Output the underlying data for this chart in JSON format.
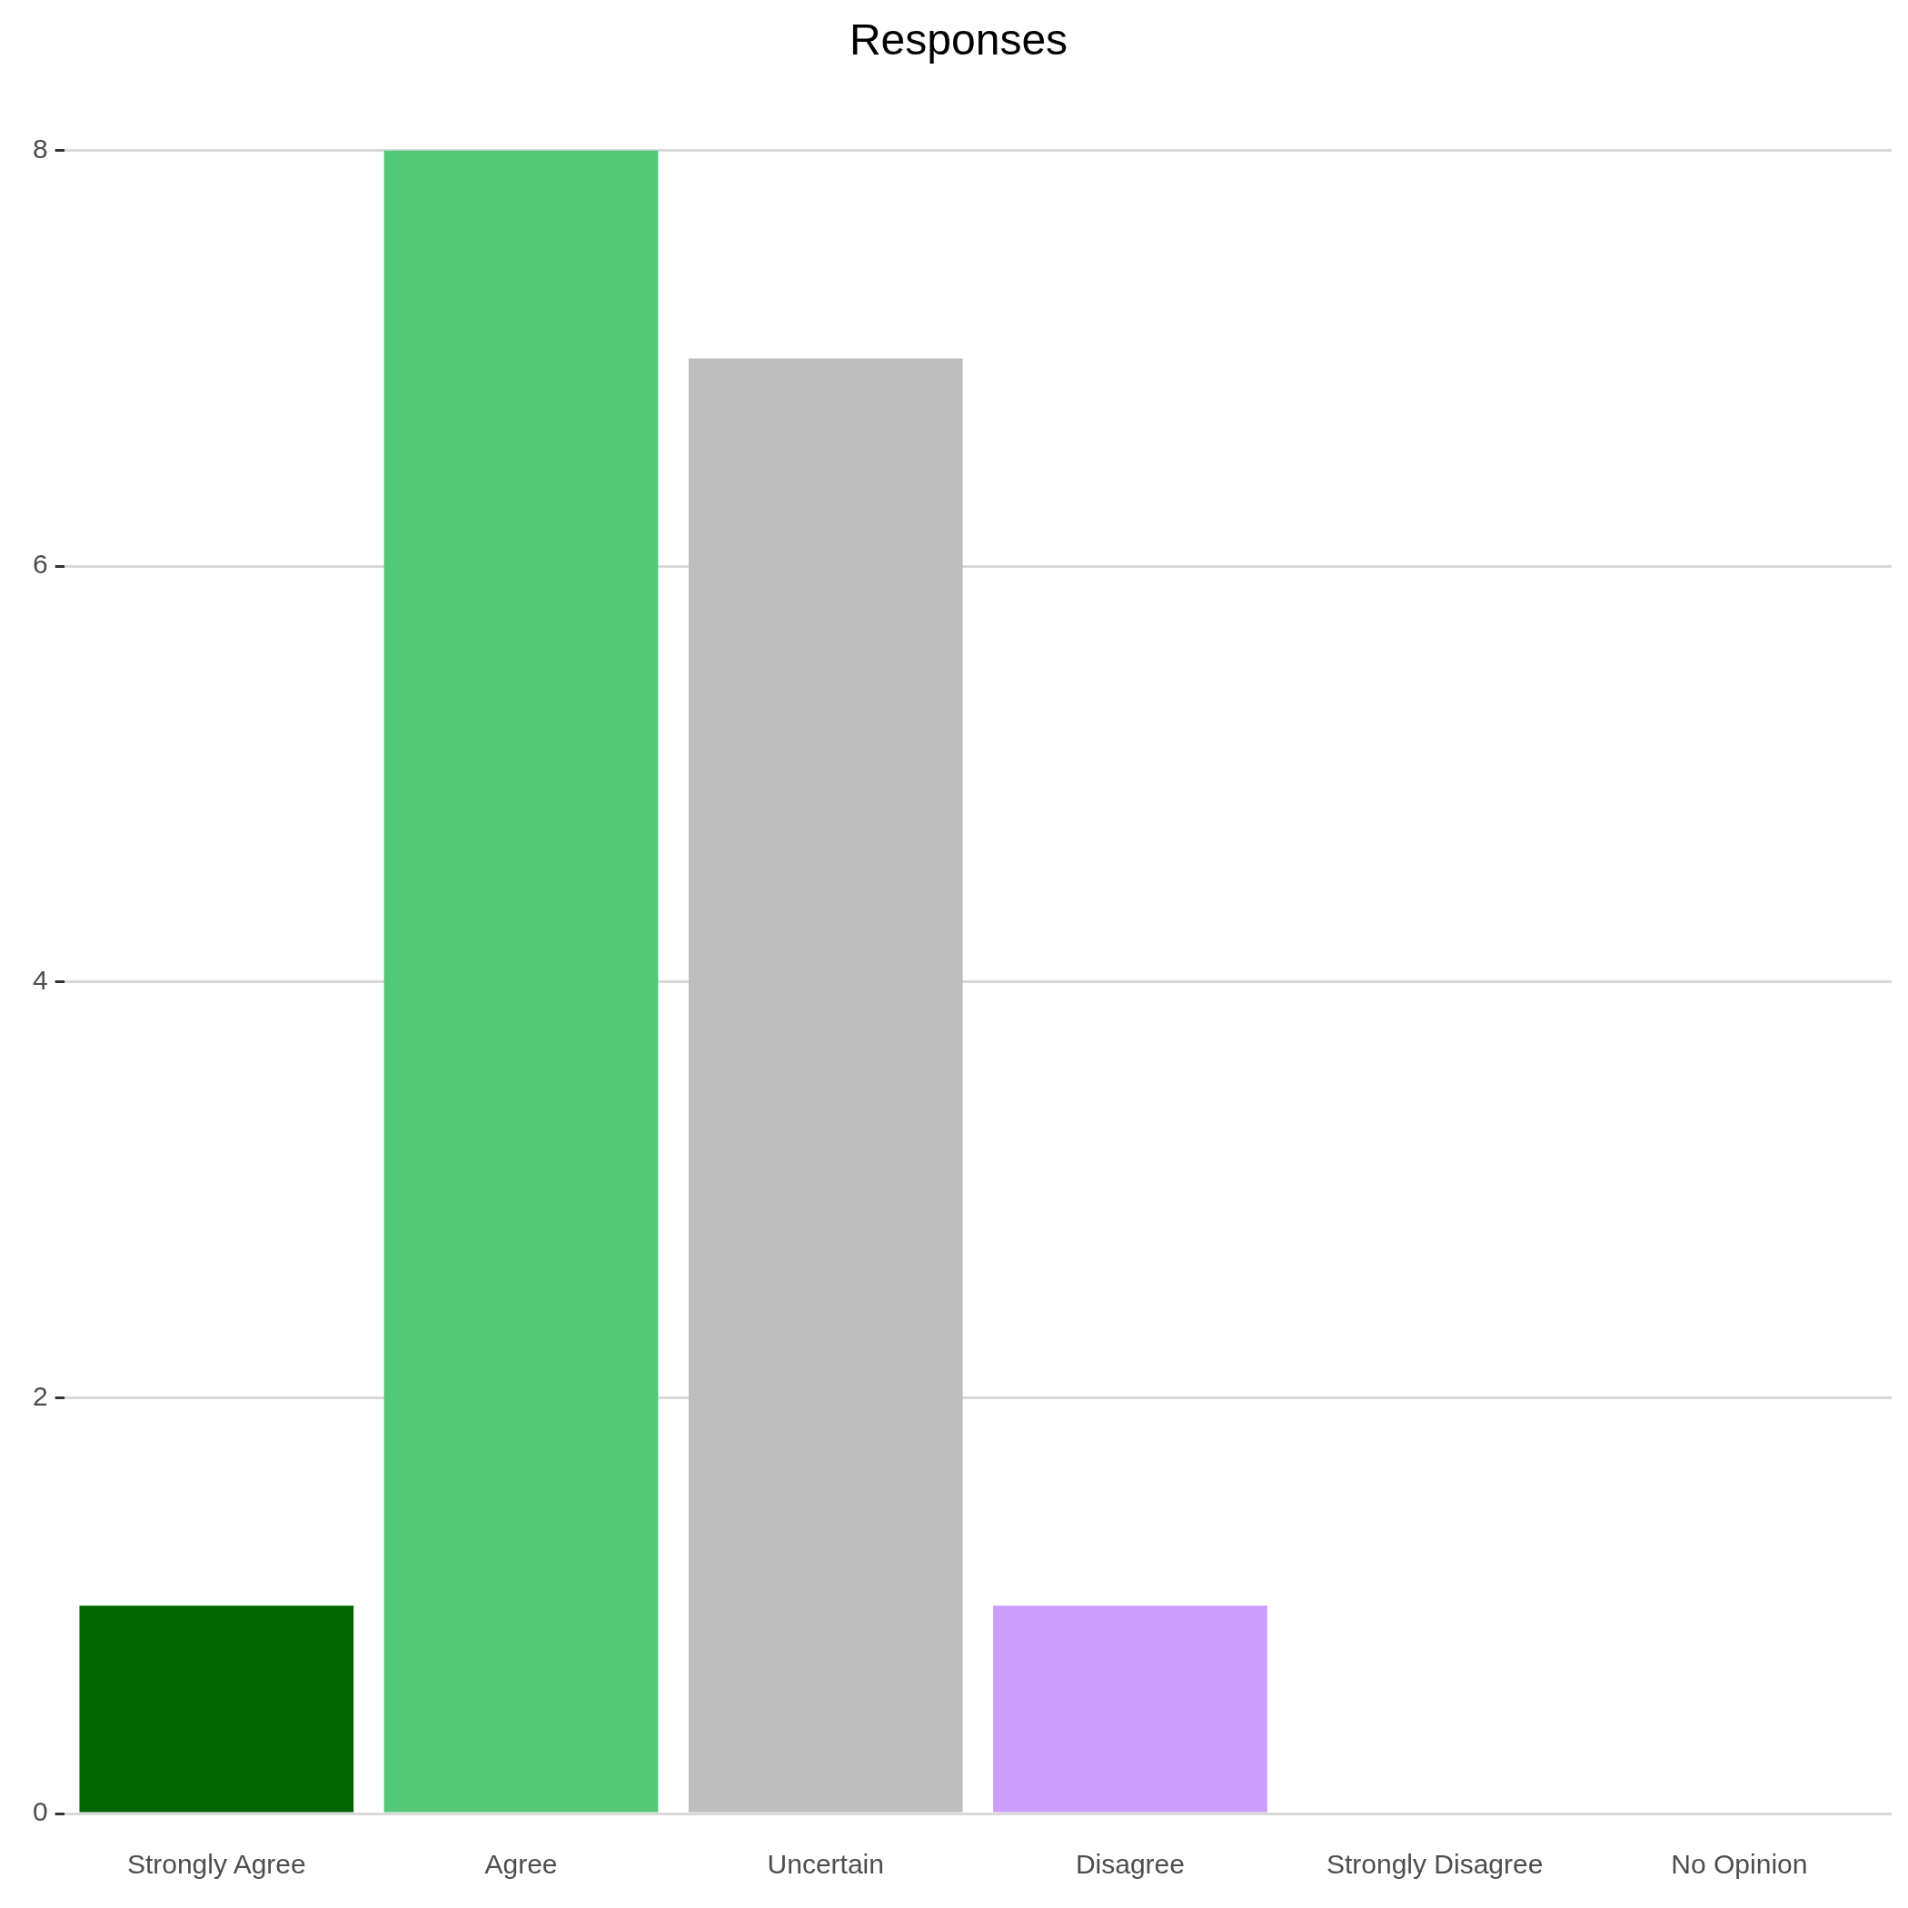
{
  "chart_data": {
    "type": "bar",
    "title": "Responses",
    "categories": [
      "Strongly Agree",
      "Agree",
      "Uncertain",
      "Disagree",
      "Strongly Disagree",
      "No Opinion"
    ],
    "values": [
      1,
      8,
      7,
      1,
      0,
      0
    ],
    "colors": [
      "#006400",
      "#52c878",
      "#bebebe",
      "#cc9efc",
      "#ff6347",
      "#808080"
    ],
    "ylim": [
      0,
      8
    ],
    "yticks": [
      0,
      2,
      4,
      6,
      8
    ],
    "grid": "y",
    "legend": false
  }
}
